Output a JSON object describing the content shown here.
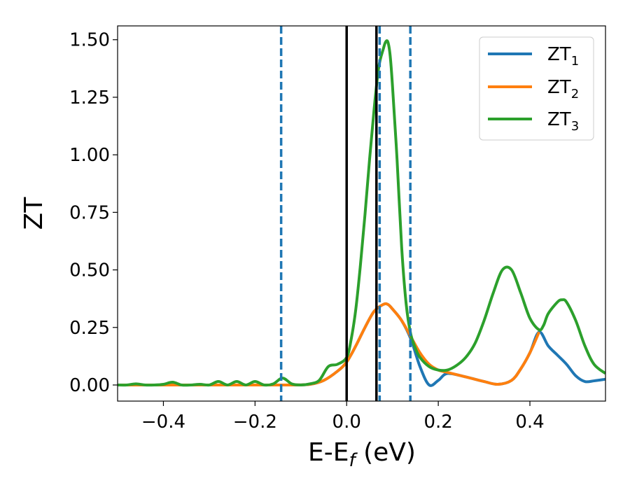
{
  "chart_data": {
    "type": "line",
    "title": "",
    "xlabel": "E-E",
    "xlabel_sub": "f",
    "xlabel_unit": " (eV)",
    "ylabel": "ZT",
    "xlim": [
      -0.5,
      0.565
    ],
    "ylim": [
      -0.07,
      1.56
    ],
    "xticks": [
      -0.4,
      -0.2,
      0.0,
      0.2,
      0.4
    ],
    "xtick_labels": [
      "−0.4",
      "−0.2",
      "0.0",
      "0.2",
      "0.4"
    ],
    "yticks": [
      0.0,
      0.25,
      0.5,
      0.75,
      1.0,
      1.25,
      1.5
    ],
    "ytick_labels": [
      "0.00",
      "0.25",
      "0.50",
      "0.75",
      "1.00",
      "1.25",
      "1.50"
    ],
    "grid": false,
    "legend_position": "top-right",
    "vertical_lines": [
      {
        "x": -0.143,
        "style": "dashed",
        "color": "#1f77b4"
      },
      {
        "x": 0.0,
        "style": "solid",
        "color": "#000000"
      },
      {
        "x": 0.065,
        "style": "solid",
        "color": "#000000"
      },
      {
        "x": 0.072,
        "style": "dashed",
        "color": "#1f77b4"
      },
      {
        "x": 0.139,
        "style": "dashed",
        "color": "#1f77b4"
      }
    ],
    "series": [
      {
        "name": "ZT",
        "sub": "1",
        "color": "#1f77b4",
        "x": [
          -0.5,
          -0.4,
          -0.3,
          -0.2,
          -0.12,
          -0.08,
          -0.05,
          -0.02,
          0.0,
          0.02,
          0.04,
          0.06,
          0.08,
          0.09,
          0.1,
          0.12,
          0.14,
          0.16,
          0.18,
          0.2,
          0.22,
          0.26,
          0.3,
          0.33,
          0.36,
          0.38,
          0.4,
          0.42,
          0.44,
          0.46,
          0.48,
          0.5,
          0.52,
          0.54,
          0.565
        ],
        "y": [
          0,
          0,
          0,
          0,
          0.0,
          0.003,
          0.02,
          0.06,
          0.1,
          0.17,
          0.25,
          0.32,
          0.35,
          0.35,
          0.33,
          0.28,
          0.2,
          0.08,
          0.0,
          0.02,
          0.05,
          0.035,
          0.015,
          0.003,
          0.02,
          0.07,
          0.14,
          0.23,
          0.17,
          0.13,
          0.09,
          0.04,
          0.015,
          0.018,
          0.025
        ]
      },
      {
        "name": "ZT",
        "sub": "2",
        "color": "#ff7f0e",
        "x": [
          -0.5,
          -0.4,
          -0.3,
          -0.2,
          -0.12,
          -0.08,
          -0.05,
          -0.02,
          0.0,
          0.02,
          0.04,
          0.06,
          0.08,
          0.09,
          0.1,
          0.12,
          0.14,
          0.16,
          0.18,
          0.2,
          0.22,
          0.26,
          0.3,
          0.33,
          0.36,
          0.38,
          0.4,
          0.42
        ],
        "y": [
          0,
          0,
          0,
          0,
          0.0,
          0.003,
          0.02,
          0.06,
          0.1,
          0.17,
          0.25,
          0.32,
          0.35,
          0.35,
          0.33,
          0.28,
          0.21,
          0.14,
          0.09,
          0.065,
          0.055,
          0.035,
          0.015,
          0.003,
          0.02,
          0.07,
          0.14,
          0.23
        ]
      },
      {
        "name": "ZT",
        "sub": "3",
        "color": "#2ca02c",
        "x": [
          -0.5,
          -0.48,
          -0.46,
          -0.44,
          -0.42,
          -0.4,
          -0.38,
          -0.36,
          -0.34,
          -0.32,
          -0.3,
          -0.28,
          -0.26,
          -0.24,
          -0.22,
          -0.2,
          -0.18,
          -0.16,
          -0.14,
          -0.12,
          -0.1,
          -0.08,
          -0.06,
          -0.04,
          -0.02,
          0.0,
          0.01,
          0.02,
          0.03,
          0.04,
          0.05,
          0.06,
          0.07,
          0.08,
          0.085,
          0.09,
          0.095,
          0.1,
          0.11,
          0.12,
          0.13,
          0.14,
          0.15,
          0.16,
          0.18,
          0.2,
          0.22,
          0.24,
          0.26,
          0.28,
          0.3,
          0.32,
          0.34,
          0.36,
          0.38,
          0.4,
          0.42,
          0.43,
          0.44,
          0.46,
          0.47,
          0.48,
          0.5,
          0.52,
          0.54,
          0.565
        ],
        "y": [
          0,
          0,
          0.005,
          0.0,
          0.0,
          0.003,
          0.012,
          0.0,
          0.0,
          0.003,
          0.0,
          0.015,
          0.0,
          0.015,
          0.0,
          0.015,
          0.0,
          0.005,
          0.03,
          0.005,
          0.0,
          0.005,
          0.02,
          0.08,
          0.09,
          0.12,
          0.2,
          0.33,
          0.52,
          0.74,
          0.98,
          1.2,
          1.38,
          1.46,
          1.49,
          1.49,
          1.43,
          1.3,
          0.98,
          0.6,
          0.35,
          0.22,
          0.16,
          0.12,
          0.08,
          0.065,
          0.065,
          0.085,
          0.12,
          0.18,
          0.28,
          0.4,
          0.5,
          0.5,
          0.4,
          0.29,
          0.24,
          0.26,
          0.31,
          0.36,
          0.37,
          0.36,
          0.28,
          0.17,
          0.09,
          0.05
        ]
      }
    ]
  }
}
